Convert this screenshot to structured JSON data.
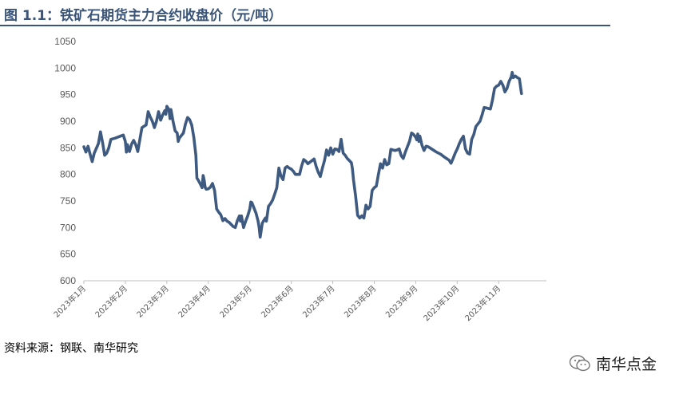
{
  "header": {
    "title": "图 1.1：铁矿石期货主力合约收盘价（元/吨）"
  },
  "footer": {
    "source": "资料来源：钢联、南华研究",
    "brand": "南华点金"
  },
  "colors": {
    "accent": "#3b5578",
    "line": "#3e5a80",
    "axis": "#bfbfbf",
    "text": "#595959"
  },
  "chart_data": {
    "type": "line",
    "title": "",
    "xlabel": "",
    "ylabel": "",
    "ylim": [
      600,
      1050
    ],
    "yticks": [
      600,
      650,
      700,
      750,
      800,
      850,
      900,
      950,
      1000,
      1050
    ],
    "categories": [
      "2023年1月",
      "2023年2月",
      "2023年3月",
      "2023年4月",
      "2023年5月",
      "2023年6月",
      "2023年7月",
      "2023年8月",
      "2023年9月",
      "2023年10月",
      "2023年11月"
    ],
    "grid": false,
    "legend": "none",
    "series": [
      {
        "values": [
          [
            0.0,
            852
          ],
          [
            0.1,
            842
          ],
          [
            0.2,
            853
          ],
          [
            0.3,
            838
          ],
          [
            0.4,
            824
          ],
          [
            0.5,
            840
          ],
          [
            0.7,
            858
          ],
          [
            0.8,
            880
          ],
          [
            0.9,
            860
          ],
          [
            1.0,
            836
          ],
          [
            1.1,
            840
          ],
          [
            1.2,
            850
          ],
          [
            1.3,
            866
          ],
          [
            1.5,
            868
          ],
          [
            1.7,
            871
          ],
          [
            1.9,
            874
          ],
          [
            2.0,
            862
          ],
          [
            2.05,
            842
          ],
          [
            2.1,
            856
          ],
          [
            2.2,
            843
          ],
          [
            2.3,
            857
          ],
          [
            2.4,
            864
          ],
          [
            2.5,
            856
          ],
          [
            2.6,
            843
          ],
          [
            2.7,
            866
          ],
          [
            2.8,
            888
          ],
          [
            3.0,
            893
          ],
          [
            3.1,
            918
          ],
          [
            3.2,
            908
          ],
          [
            3.3,
            900
          ],
          [
            3.4,
            888
          ],
          [
            3.5,
            900
          ],
          [
            3.6,
            918
          ],
          [
            3.7,
            902
          ],
          [
            3.8,
            912
          ],
          [
            3.9,
            920
          ],
          [
            3.95,
            913
          ],
          [
            4.0,
            928
          ],
          [
            4.1,
            922
          ],
          [
            4.15,
            905
          ],
          [
            4.2,
            922
          ],
          [
            4.3,
            900
          ],
          [
            4.4,
            882
          ],
          [
            4.5,
            878
          ],
          [
            4.55,
            862
          ],
          [
            4.6,
            868
          ],
          [
            4.8,
            878
          ],
          [
            4.9,
            895
          ],
          [
            5.0,
            907
          ],
          [
            5.1,
            903
          ],
          [
            5.2,
            893
          ],
          [
            5.3,
            870
          ],
          [
            5.4,
            836
          ],
          [
            5.45,
            793
          ],
          [
            5.5,
            790
          ],
          [
            5.6,
            783
          ],
          [
            5.7,
            775
          ],
          [
            5.75,
            798
          ],
          [
            5.8,
            789
          ],
          [
            5.85,
            775
          ],
          [
            5.9,
            772
          ],
          [
            6.0,
            773
          ],
          [
            6.1,
            776
          ],
          [
            6.2,
            783
          ],
          [
            6.3,
            770
          ],
          [
            6.4,
            735
          ],
          [
            6.5,
            729
          ],
          [
            6.6,
            724
          ],
          [
            6.7,
            713
          ],
          [
            6.8,
            717
          ],
          [
            6.9,
            712
          ],
          [
            7.0,
            710
          ],
          [
            7.1,
            706
          ],
          [
            7.2,
            702
          ],
          [
            7.3,
            700
          ],
          [
            7.4,
            713
          ],
          [
            7.5,
            722
          ],
          [
            7.55,
            712
          ],
          [
            7.6,
            722
          ],
          [
            7.65,
            710
          ],
          [
            7.7,
            700
          ],
          [
            7.8,
            712
          ],
          [
            7.9,
            722
          ],
          [
            8.0,
            735
          ],
          [
            8.05,
            748
          ],
          [
            8.1,
            747
          ],
          [
            8.2,
            737
          ],
          [
            8.3,
            727
          ],
          [
            8.4,
            712
          ],
          [
            8.45,
            700
          ],
          [
            8.5,
            682
          ],
          [
            8.55,
            695
          ],
          [
            8.6,
            708
          ],
          [
            8.7,
            715
          ],
          [
            8.75,
            718
          ],
          [
            8.8,
            712
          ],
          [
            8.9,
            740
          ],
          [
            9.0,
            745
          ],
          [
            9.1,
            752
          ],
          [
            9.2,
            763
          ],
          [
            9.3,
            775
          ],
          [
            9.4,
            812
          ],
          [
            9.5,
            797
          ],
          [
            9.6,
            790
          ],
          [
            9.7,
            812
          ],
          [
            9.8,
            815
          ],
          [
            9.9,
            812
          ],
          [
            10.0,
            810
          ],
          [
            10.1,
            806
          ],
          [
            10.2,
            800
          ],
          [
            10.4,
            800
          ],
          [
            10.5,
            816
          ],
          [
            10.6,
            828
          ],
          [
            10.7,
            825
          ],
          [
            10.8,
            820
          ],
          [
            11.0,
            826
          ],
          [
            11.1,
            829
          ],
          [
            11.2,
            815
          ],
          [
            11.3,
            804
          ],
          [
            11.4,
            796
          ],
          [
            11.5,
            812
          ],
          [
            11.6,
            826
          ],
          [
            11.7,
            846
          ],
          [
            11.8,
            836
          ],
          [
            11.9,
            850
          ],
          [
            12.0,
            838
          ],
          [
            12.1,
            848
          ],
          [
            12.2,
            847
          ],
          [
            12.3,
            843
          ],
          [
            12.4,
            866
          ],
          [
            12.5,
            840
          ],
          [
            12.6,
            836
          ],
          [
            12.7,
            830
          ],
          [
            12.8,
            826
          ],
          [
            12.9,
            822
          ],
          [
            12.95,
            810
          ],
          [
            13.0,
            790
          ],
          [
            13.1,
            760
          ],
          [
            13.2,
            723
          ],
          [
            13.3,
            718
          ],
          [
            13.4,
            722
          ],
          [
            13.5,
            718
          ],
          [
            13.6,
            742
          ],
          [
            13.7,
            735
          ],
          [
            13.8,
            740
          ],
          [
            13.9,
            770
          ],
          [
            14.0,
            775
          ],
          [
            14.1,
            778
          ],
          [
            14.2,
            800
          ],
          [
            14.3,
            820
          ],
          [
            14.4,
            812
          ],
          [
            14.5,
            828
          ],
          [
            14.6,
            818
          ],
          [
            14.7,
            820
          ],
          [
            14.8,
            847
          ],
          [
            14.9,
            846
          ],
          [
            15.0,
            845
          ],
          [
            15.1,
            846
          ],
          [
            15.2,
            848
          ],
          [
            15.3,
            835
          ],
          [
            15.4,
            830
          ],
          [
            15.5,
            842
          ],
          [
            15.6,
            852
          ],
          [
            15.7,
            862
          ],
          [
            15.8,
            878
          ],
          [
            15.9,
            875
          ],
          [
            16.0,
            870
          ],
          [
            16.05,
            865
          ],
          [
            16.1,
            876
          ],
          [
            16.15,
            862
          ],
          [
            16.2,
            872
          ],
          [
            16.3,
            855
          ],
          [
            16.4,
            845
          ],
          [
            16.5,
            853
          ],
          [
            16.6,
            852
          ],
          [
            16.8,
            847
          ],
          [
            17.0,
            842
          ],
          [
            17.2,
            838
          ],
          [
            17.4,
            832
          ],
          [
            17.6,
            827
          ],
          [
            17.7,
            821
          ],
          [
            17.8,
            830
          ],
          [
            17.9,
            840
          ],
          [
            18.0,
            848
          ],
          [
            18.1,
            858
          ],
          [
            18.2,
            866
          ],
          [
            18.3,
            872
          ],
          [
            18.4,
            848
          ],
          [
            18.5,
            840
          ],
          [
            18.6,
            838
          ],
          [
            18.7,
            866
          ],
          [
            18.8,
            875
          ],
          [
            18.9,
            890
          ],
          [
            19.0,
            895
          ],
          [
            19.1,
            900
          ],
          [
            19.2,
            912
          ],
          [
            19.3,
            926
          ],
          [
            19.4,
            925
          ],
          [
            19.5,
            924
          ],
          [
            19.6,
            923
          ],
          [
            19.7,
            940
          ],
          [
            19.8,
            962
          ],
          [
            19.9,
            966
          ],
          [
            20.0,
            968
          ],
          [
            20.1,
            975
          ],
          [
            20.2,
            968
          ],
          [
            20.3,
            955
          ],
          [
            20.4,
            962
          ],
          [
            20.5,
            975
          ],
          [
            20.6,
            983
          ],
          [
            20.65,
            992
          ],
          [
            20.7,
            982
          ],
          [
            20.8,
            985
          ],
          [
            20.9,
            982
          ],
          [
            21.0,
            980
          ],
          [
            21.1,
            952
          ]
        ]
      }
    ]
  }
}
